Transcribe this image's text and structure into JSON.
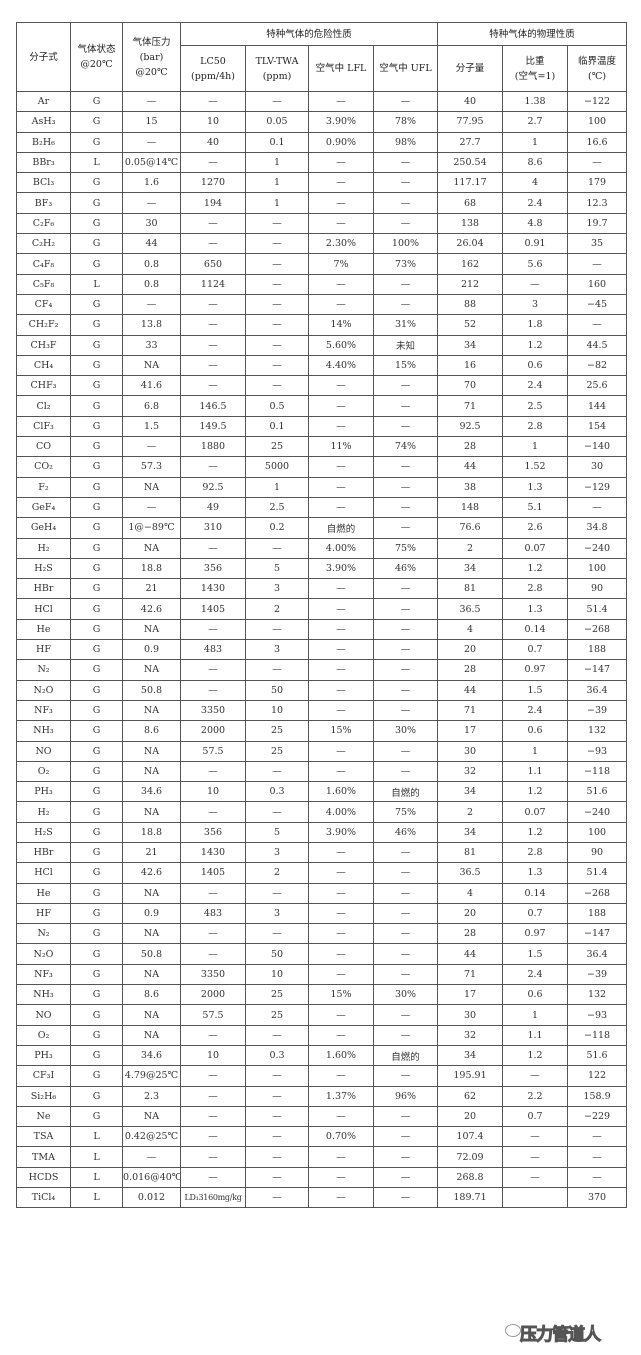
{
  "header": {
    "formula": "分子式",
    "state": "气体状态\n@20℃",
    "pressure": "气体压力\n(bar)\n@20℃",
    "hazard_group": "特种气体的危险性质",
    "physical_group": "特种气体的物理性质",
    "lc50": "LC50\n(ppm/4h)",
    "tlv": "TLV-TWA\n(ppm)",
    "lfl": "空气中 LFL",
    "ufl": "空气中 UFL",
    "mw": "分子量",
    "sg": "比重\n(空气=1)",
    "tc": "临界温度\n(℃)"
  },
  "rows": [
    [
      "Ar",
      "G",
      "—",
      "—",
      "—",
      "—",
      "—",
      "40",
      "1.38",
      "−122"
    ],
    [
      "AsH₃",
      "G",
      "15",
      "10",
      "0.05",
      "3.90%",
      "78%",
      "77.95",
      "2.7",
      "100"
    ],
    [
      "B₂H₆",
      "G",
      "—",
      "40",
      "0.1",
      "0.90%",
      "98%",
      "27.7",
      "1",
      "16.6"
    ],
    [
      "BBr₃",
      "L",
      "0.05@14℃",
      "—",
      "1",
      "—",
      "—",
      "250.54",
      "8.6",
      "—"
    ],
    [
      "BCl₃",
      "G",
      "1.6",
      "1270",
      "1",
      "—",
      "—",
      "117.17",
      "4",
      "179"
    ],
    [
      "BF₃",
      "G",
      "—",
      "194",
      "1",
      "—",
      "—",
      "68",
      "2.4",
      "12.3"
    ],
    [
      "C₂F₆",
      "G",
      "30",
      "—",
      "—",
      "—",
      "—",
      "138",
      "4.8",
      "19.7"
    ],
    [
      "C₂H₂",
      "G",
      "44",
      "—",
      "—",
      "2.30%",
      "100%",
      "26.04",
      "0.91",
      "35"
    ],
    [
      "C₄F₈",
      "G",
      "0.8",
      "650",
      "—",
      "7%",
      "73%",
      "162",
      "5.6",
      "—"
    ],
    [
      "C₅F₈",
      "L",
      "0.8",
      "1124",
      "—",
      "—",
      "—",
      "212",
      "—",
      "160"
    ],
    [
      "CF₄",
      "G",
      "—",
      "—",
      "—",
      "—",
      "—",
      "88",
      "3",
      "−45"
    ],
    [
      "CH₂F₂",
      "G",
      "13.8",
      "—",
      "—",
      "14%",
      "31%",
      "52",
      "1.8",
      "—"
    ],
    [
      "CH₃F",
      "G",
      "33",
      "—",
      "—",
      "5.60%",
      "未知",
      "34",
      "1.2",
      "44.5"
    ],
    [
      "CH₄",
      "G",
      "NA",
      "—",
      "—",
      "4.40%",
      "15%",
      "16",
      "0.6",
      "−82"
    ],
    [
      "CHF₃",
      "G",
      "41.6",
      "—",
      "—",
      "—",
      "—",
      "70",
      "2.4",
      "25.6"
    ],
    [
      "Cl₂",
      "G",
      "6.8",
      "146.5",
      "0.5",
      "—",
      "—",
      "71",
      "2.5",
      "144"
    ],
    [
      "ClF₃",
      "G",
      "1.5",
      "149.5",
      "0.1",
      "—",
      "—",
      "92.5",
      "2.8",
      "154"
    ],
    [
      "CO",
      "G",
      "—",
      "1880",
      "25",
      "11%",
      "74%",
      "28",
      "1",
      "−140"
    ],
    [
      "CO₂",
      "G",
      "57.3",
      "—",
      "5000",
      "—",
      "—",
      "44",
      "1.52",
      "30"
    ],
    [
      "F₂",
      "G",
      "NA",
      "92.5",
      "1",
      "—",
      "—",
      "38",
      "1.3",
      "−129"
    ],
    [
      "GeF₄",
      "G",
      "—",
      "49",
      "2.5",
      "—",
      "—",
      "148",
      "5.1",
      "—"
    ],
    [
      "GeH₄",
      "G",
      "1@−89℃",
      "310",
      "0.2",
      "自燃的",
      "—",
      "76.6",
      "2.6",
      "34.8"
    ],
    [
      "H₂",
      "G",
      "NA",
      "—",
      "—",
      "4.00%",
      "75%",
      "2",
      "0.07",
      "−240"
    ],
    [
      "H₂S",
      "G",
      "18.8",
      "356",
      "5",
      "3.90%",
      "46%",
      "34",
      "1.2",
      "100"
    ],
    [
      "HBr",
      "G",
      "21",
      "1430",
      "3",
      "—",
      "—",
      "81",
      "2.8",
      "90"
    ],
    [
      "HCl",
      "G",
      "42.6",
      "1405",
      "2",
      "—",
      "—",
      "36.5",
      "1.3",
      "51.4"
    ],
    [
      "He",
      "G",
      "NA",
      "—",
      "—",
      "—",
      "—",
      "4",
      "0.14",
      "−268"
    ],
    [
      "HF",
      "G",
      "0.9",
      "483",
      "3",
      "—",
      "—",
      "20",
      "0.7",
      "188"
    ],
    [
      "N₂",
      "G",
      "NA",
      "—",
      "—",
      "—",
      "—",
      "28",
      "0.97",
      "−147"
    ],
    [
      "N₂O",
      "G",
      "50.8",
      "—",
      "50",
      "—",
      "—",
      "44",
      "1.5",
      "36.4"
    ],
    [
      "NF₃",
      "G",
      "NA",
      "3350",
      "10",
      "—",
      "—",
      "71",
      "2.4",
      "−39"
    ],
    [
      "NH₃",
      "G",
      "8.6",
      "2000",
      "25",
      "15%",
      "30%",
      "17",
      "0.6",
      "132"
    ],
    [
      "NO",
      "G",
      "NA",
      "57.5",
      "25",
      "—",
      "—",
      "30",
      "1",
      "−93"
    ],
    [
      "O₂",
      "G",
      "NA",
      "—",
      "—",
      "—",
      "—",
      "32",
      "1.1",
      "−118"
    ],
    [
      "PH₃",
      "G",
      "34.6",
      "10",
      "0.3",
      "1.60%",
      "自燃的",
      "34",
      "1.2",
      "51.6"
    ],
    [
      "H₂",
      "G",
      "NA",
      "—",
      "—",
      "4.00%",
      "75%",
      "2",
      "0.07",
      "−240"
    ],
    [
      "H₂S",
      "G",
      "18.8",
      "356",
      "5",
      "3.90%",
      "46%",
      "34",
      "1.2",
      "100"
    ],
    [
      "HBr",
      "G",
      "21",
      "1430",
      "3",
      "—",
      "—",
      "81",
      "2.8",
      "90"
    ],
    [
      "HCl",
      "G",
      "42.6",
      "1405",
      "2",
      "—",
      "—",
      "36.5",
      "1.3",
      "51.4"
    ],
    [
      "He",
      "G",
      "NA",
      "—",
      "—",
      "—",
      "—",
      "4",
      "0.14",
      "−268"
    ],
    [
      "HF",
      "G",
      "0.9",
      "483",
      "3",
      "—",
      "—",
      "20",
      "0.7",
      "188"
    ],
    [
      "N₂",
      "G",
      "NA",
      "—",
      "—",
      "—",
      "—",
      "28",
      "0.97",
      "−147"
    ],
    [
      "N₂O",
      "G",
      "50.8",
      "—",
      "50",
      "—",
      "—",
      "44",
      "1.5",
      "36.4"
    ],
    [
      "NF₃",
      "G",
      "NA",
      "3350",
      "10",
      "—",
      "—",
      "71",
      "2.4",
      "−39"
    ],
    [
      "NH₃",
      "G",
      "8.6",
      "2000",
      "25",
      "15%",
      "30%",
      "17",
      "0.6",
      "132"
    ],
    [
      "NO",
      "G",
      "NA",
      "57.5",
      "25",
      "—",
      "—",
      "30",
      "1",
      "−93"
    ],
    [
      "O₂",
      "G",
      "NA",
      "—",
      "—",
      "—",
      "—",
      "32",
      "1.1",
      "−118"
    ],
    [
      "PH₃",
      "G",
      "34.6",
      "10",
      "0.3",
      "1.60%",
      "自燃的",
      "34",
      "1.2",
      "51.6"
    ],
    [
      "CF₃I",
      "G",
      "4.79@25℃",
      "—",
      "—",
      "—",
      "—",
      "195.91",
      "—",
      "122"
    ],
    [
      "Si₂H₆",
      "G",
      "2.3",
      "—",
      "—",
      "1.37%",
      "96%",
      "62",
      "2.2",
      "158.9"
    ],
    [
      "Ne",
      "G",
      "NA",
      "—",
      "—",
      "—",
      "—",
      "20",
      "0.7",
      "−229"
    ],
    [
      "TSA",
      "L",
      "0.42@25℃",
      "—",
      "—",
      "0.70%",
      "—",
      "107.4",
      "—",
      "—"
    ],
    [
      "TMA",
      "L",
      "—",
      "—",
      "—",
      "—",
      "—",
      "72.09",
      "—",
      "—"
    ],
    [
      "HCDS",
      "L",
      "0.016@40℃",
      "—",
      "—",
      "—",
      "—",
      "268.8",
      "—",
      "—"
    ],
    [
      "TiCl₄",
      "L",
      "0.012",
      "LD₁3160mg/kg",
      "—",
      "—",
      "—",
      "189.71",
      "",
      "370"
    ]
  ],
  "watermark": "压力管道人"
}
